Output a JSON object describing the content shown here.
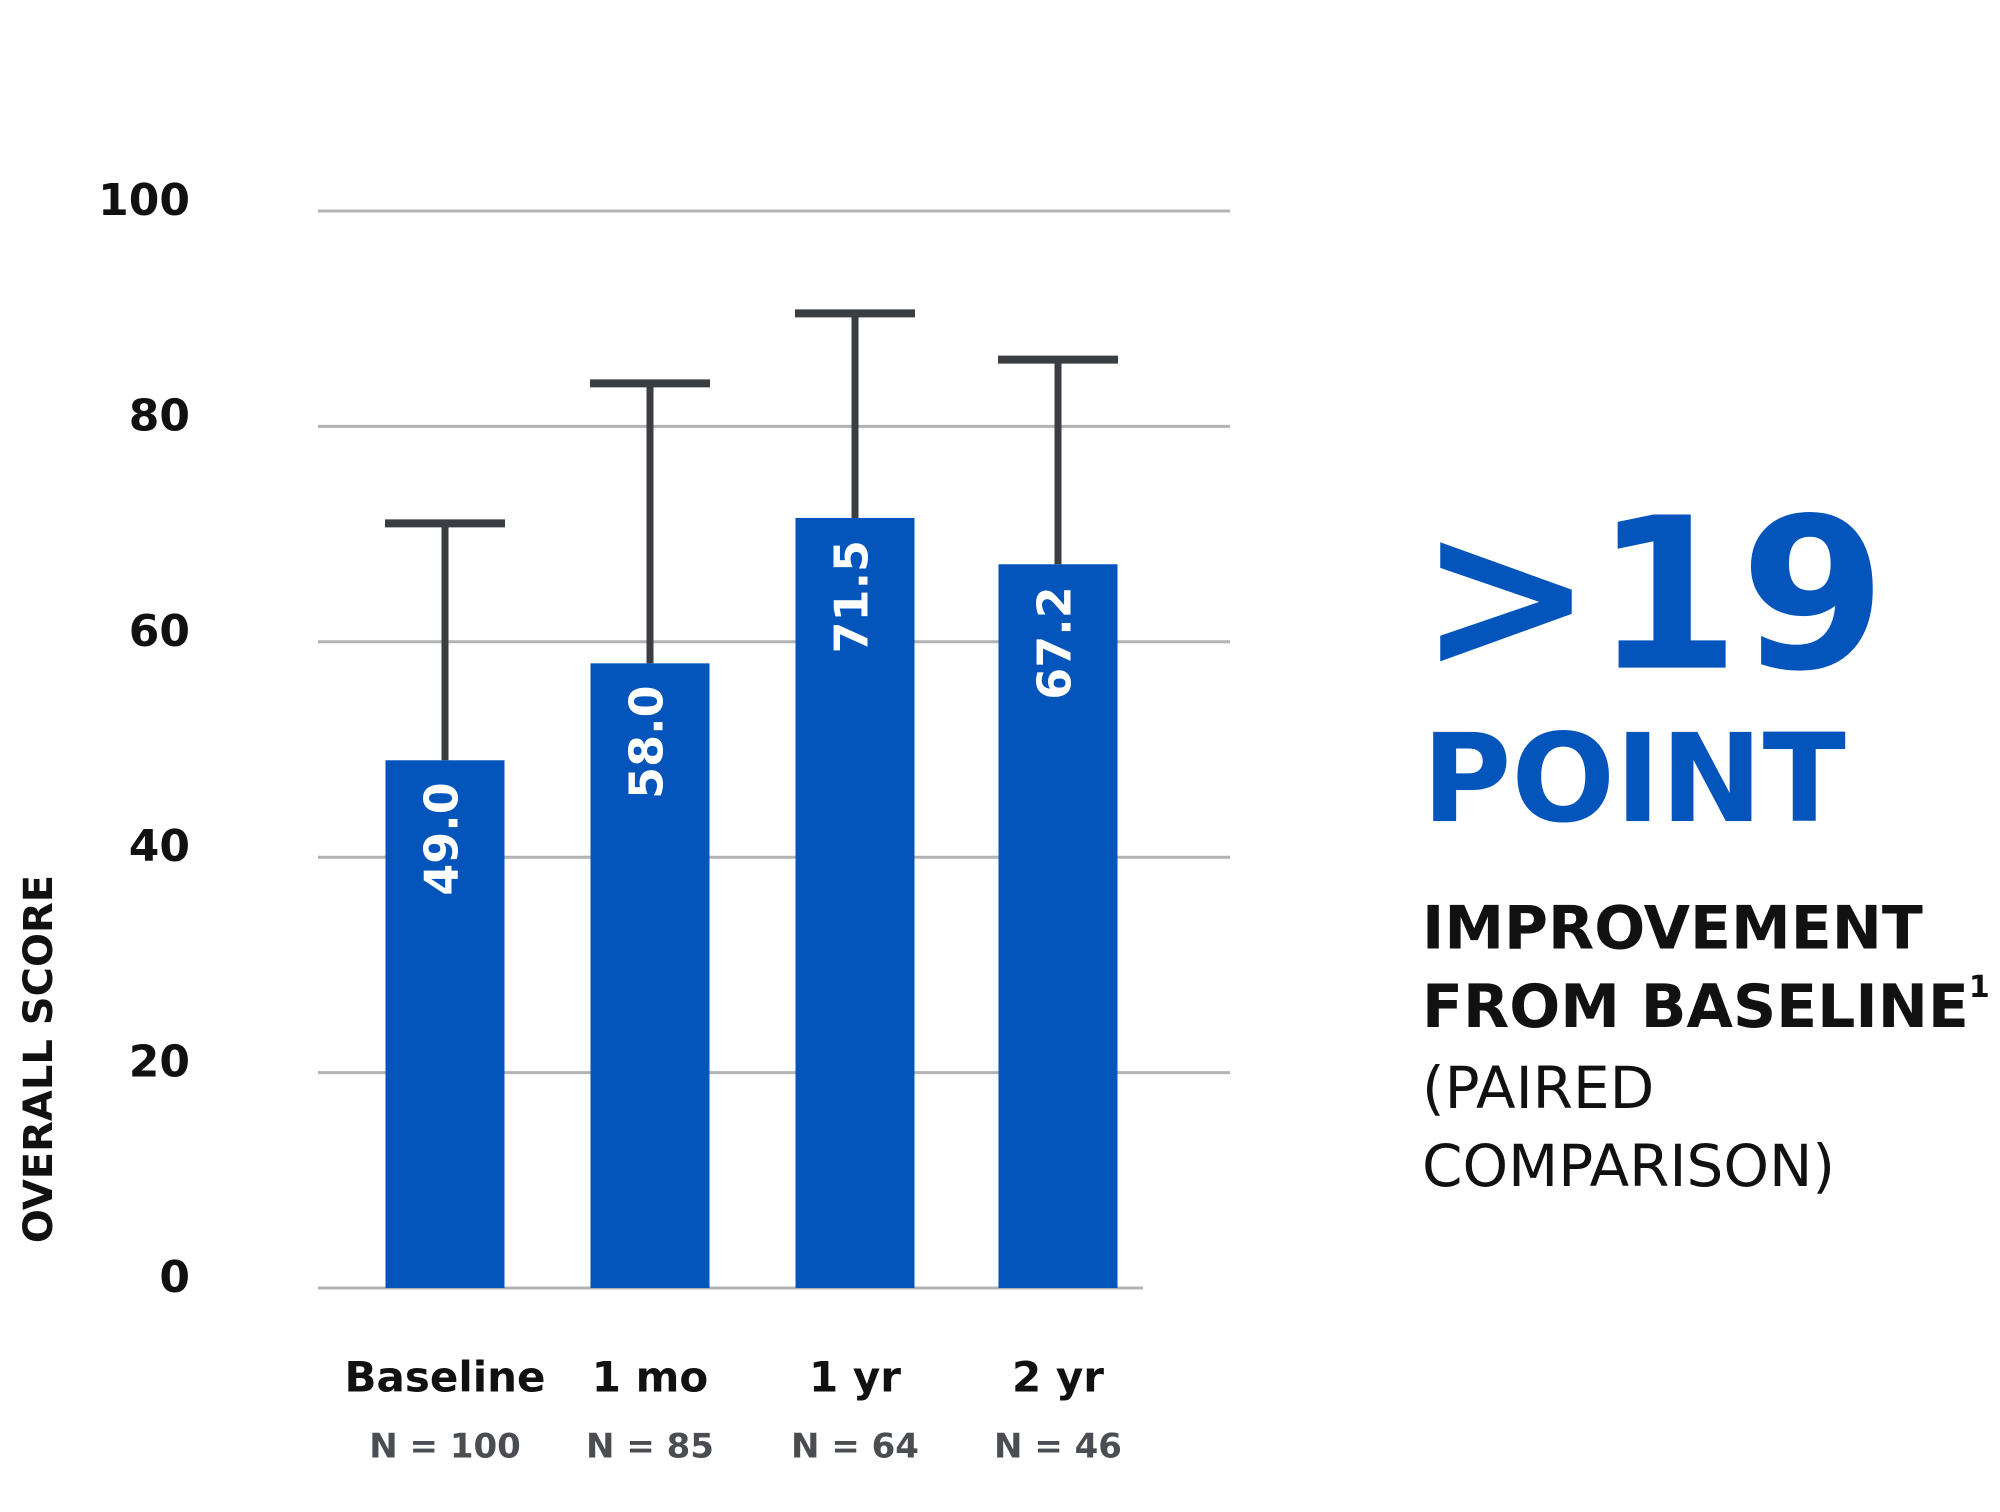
{
  "chart_data": {
    "type": "bar",
    "y_label": "OVERALL SCORE",
    "categories": [
      "Baseline",
      "1 mo",
      "1 yr",
      "2 yr"
    ],
    "sample_sizes": [
      "N = 100",
      "N = 85",
      "N = 64",
      "N = 46"
    ],
    "values": [
      49.0,
      58.0,
      71.5,
      67.2
    ],
    "value_labels": [
      "49.0",
      "58.0",
      "71.5",
      "67.2"
    ],
    "errors": [
      22,
      26,
      19,
      19
    ],
    "color": "#0455bb",
    "error_color": "#3a3d42",
    "ylim": [
      0,
      100
    ],
    "yticks": [
      0,
      20,
      40,
      60,
      80,
      100
    ],
    "grid": true
  },
  "callout": {
    "headline": ">19",
    "unit": "POINT",
    "line1": "IMPROVEMENT",
    "line2": "FROM BASELINE",
    "footnote": "1",
    "line3": "(PAIRED",
    "line4": "COMPARISON)"
  }
}
